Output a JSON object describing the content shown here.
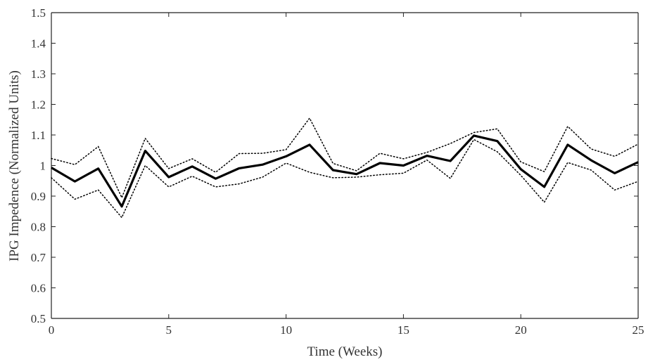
{
  "chart_data": {
    "type": "line",
    "title": "",
    "xlabel": "Time (Weeks)",
    "ylabel": "IPG Impedence (Normalized Units)",
    "xlim": [
      0,
      25
    ],
    "ylim": [
      0.5,
      1.5
    ],
    "x_ticks": [
      "0",
      "5",
      "10",
      "15",
      "20",
      "25"
    ],
    "y_ticks": [
      "0.5",
      "0.6",
      "0.7",
      "0.8",
      "0.9",
      "1",
      "1.1",
      "1.2",
      "1.3",
      "1.4",
      "1.5"
    ],
    "grid": false,
    "legend": "none",
    "x": [
      0,
      1,
      2,
      3,
      4,
      5,
      6,
      7,
      8,
      9,
      10,
      11,
      12,
      13,
      14,
      15,
      16,
      17,
      18,
      19,
      20,
      21,
      22,
      23,
      24,
      25
    ],
    "series": [
      {
        "style": "solid-thick",
        "color": "#000000",
        "values": [
          0.993,
          0.948,
          0.99,
          0.866,
          1.048,
          0.962,
          0.997,
          0.957,
          0.991,
          1.003,
          1.03,
          1.068,
          0.985,
          0.972,
          1.008,
          1.0,
          1.032,
          1.015,
          1.098,
          1.08,
          0.988,
          0.93,
          1.068,
          1.017,
          0.975,
          1.011
        ]
      },
      {
        "style": "dotted",
        "color": "#000000",
        "values": [
          1.023,
          1.003,
          1.062,
          0.895,
          1.089,
          0.99,
          1.022,
          0.978,
          1.039,
          1.04,
          1.052,
          1.155,
          1.007,
          0.983,
          1.04,
          1.022,
          1.043,
          1.072,
          1.108,
          1.12,
          1.012,
          0.98,
          1.128,
          1.054,
          1.03,
          1.07
        ]
      },
      {
        "style": "dotted",
        "color": "#000000",
        "values": [
          0.96,
          0.89,
          0.92,
          0.83,
          1.0,
          0.93,
          0.965,
          0.93,
          0.94,
          0.962,
          1.008,
          0.978,
          0.96,
          0.962,
          0.97,
          0.975,
          1.018,
          0.958,
          1.085,
          1.045,
          0.968,
          0.88,
          1.01,
          0.985,
          0.92,
          0.948
        ]
      }
    ]
  }
}
